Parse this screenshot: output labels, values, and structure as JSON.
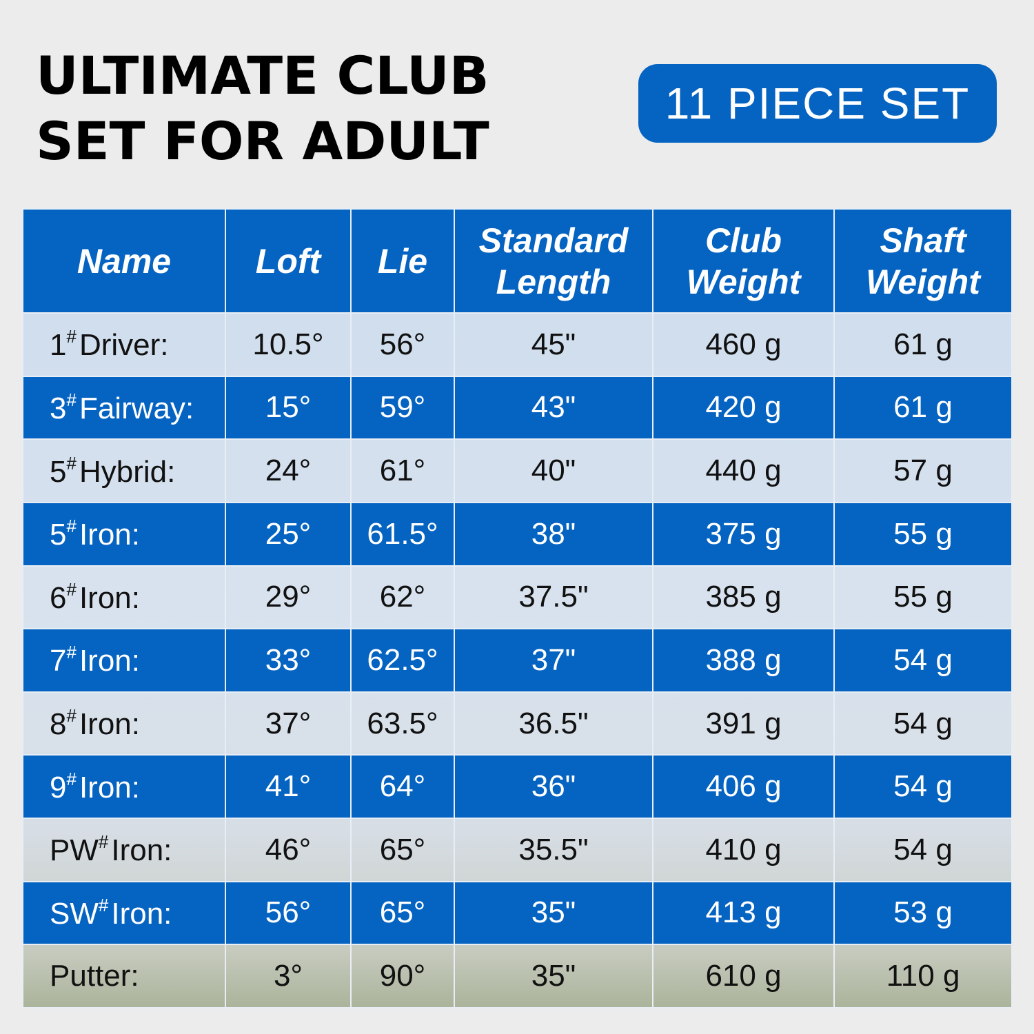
{
  "title": {
    "line1": "ULTIMATE CLUB",
    "line2": "SET FOR ADULT"
  },
  "badge": "11 PIECE SET",
  "colors": {
    "accent": "#0563c1",
    "background": "#ececec",
    "light_row": "#cfdcea"
  },
  "table": {
    "headers": [
      {
        "l1": "Name",
        "l2": ""
      },
      {
        "l1": "Loft",
        "l2": ""
      },
      {
        "l1": "Lie",
        "l2": ""
      },
      {
        "l1": "Standard",
        "l2": "Length"
      },
      {
        "l1": "Club",
        "l2": "Weight"
      },
      {
        "l1": "Shaft",
        "l2": "Weight"
      }
    ],
    "rows": [
      {
        "num": "1",
        "sup": "#",
        "label": "Driver:",
        "loft": "10.5°",
        "lie": "56°",
        "length": "45\"",
        "club_weight": "460 g",
        "shaft_weight": "61 g"
      },
      {
        "num": "3",
        "sup": "#",
        "label": "Fairway:",
        "loft": "15°",
        "lie": "59°",
        "length": "43\"",
        "club_weight": "420 g",
        "shaft_weight": "61 g"
      },
      {
        "num": "5",
        "sup": "#",
        "label": "Hybrid:",
        "loft": "24°",
        "lie": "61°",
        "length": "40\"",
        "club_weight": "440 g",
        "shaft_weight": "57 g"
      },
      {
        "num": "5",
        "sup": "#",
        "label": "Iron:",
        "loft": "25°",
        "lie": "61.5°",
        "length": "38\"",
        "club_weight": "375 g",
        "shaft_weight": "55 g"
      },
      {
        "num": "6",
        "sup": "#",
        "label": "Iron:",
        "loft": "29°",
        "lie": "62°",
        "length": "37.5\"",
        "club_weight": "385 g",
        "shaft_weight": "55 g"
      },
      {
        "num": "7",
        "sup": "#",
        "label": "Iron:",
        "loft": "33°",
        "lie": "62.5°",
        "length": "37\"",
        "club_weight": "388 g",
        "shaft_weight": "54 g"
      },
      {
        "num": "8",
        "sup": "#",
        "label": "Iron:",
        "loft": "37°",
        "lie": "63.5°",
        "length": "36.5\"",
        "club_weight": "391 g",
        "shaft_weight": "54 g"
      },
      {
        "num": "9",
        "sup": "#",
        "label": "Iron:",
        "loft": "41°",
        "lie": "64°",
        "length": "36\"",
        "club_weight": "406 g",
        "shaft_weight": "54 g"
      },
      {
        "num": "PW",
        "sup": "#",
        "label": "Iron:",
        "loft": "46°",
        "lie": "65°",
        "length": "35.5\"",
        "club_weight": "410 g",
        "shaft_weight": "54 g"
      },
      {
        "num": "SW",
        "sup": "#",
        "label": "Iron:",
        "loft": "56°",
        "lie": "65°",
        "length": "35\"",
        "club_weight": "413 g",
        "shaft_weight": "53 g"
      },
      {
        "num": "",
        "sup": "",
        "label": "Putter:",
        "loft": "3°",
        "lie": "90°",
        "length": "35\"",
        "club_weight": "610 g",
        "shaft_weight": "110 g"
      }
    ]
  }
}
